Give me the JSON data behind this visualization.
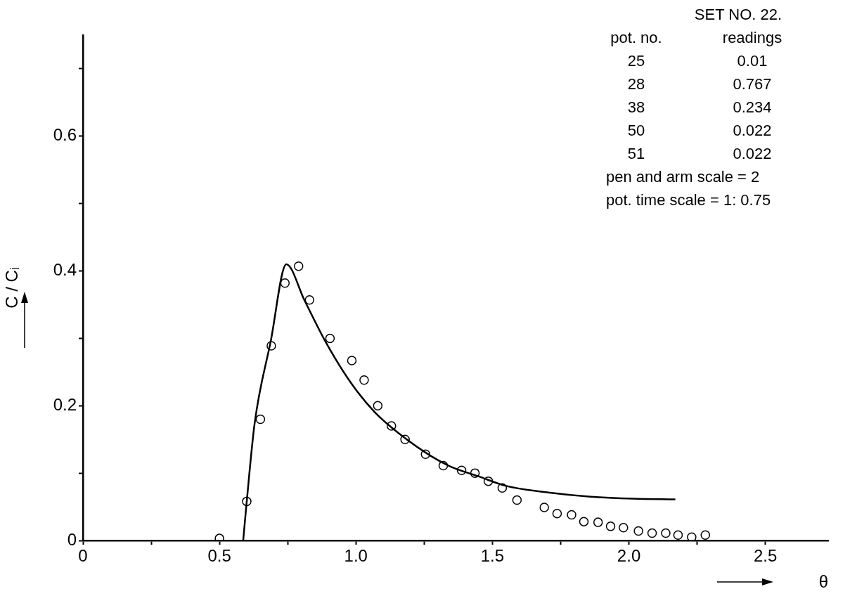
{
  "chart_data": {
    "type": "scatter",
    "xlabel": "θ",
    "ylabel": "C / Cᵢ",
    "xlim": [
      0,
      2.73
    ],
    "ylim": [
      0,
      0.75
    ],
    "xticks": [
      0,
      {
        "value": 0.25,
        "label": null
      },
      0.5,
      {
        "value": 0.75,
        "label": null
      },
      {
        "value": 1,
        "label": "1.0"
      },
      {
        "value": 1.25,
        "label": null
      },
      1.5,
      {
        "value": 1.75,
        "label": null
      },
      {
        "value": 2,
        "label": "2.0"
      },
      {
        "value": 2.25,
        "label": null
      },
      2.5
    ],
    "yticks": [
      0,
      {
        "value": 0.1,
        "label": null
      },
      0.2,
      {
        "value": 0.3,
        "label": null
      },
      0.4,
      {
        "value": 0.5,
        "label": null
      },
      0.6,
      {
        "value": 0.7,
        "label": null
      }
    ],
    "grid": false,
    "legend": false,
    "annotations": [
      "SET NO. 22.",
      "pot. no.",
      "readings",
      "25",
      "0.01",
      "28",
      "0.767",
      "38",
      "0.234",
      "50",
      "0.022",
      "51",
      "0.022",
      "pen and arm scale = 2",
      "pot. time scale = 1: 0.75"
    ],
    "series": [
      {
        "type": "line",
        "color": "#000000",
        "marker": "none",
        "line_style": "solid",
        "x": [
          0.587,
          0.6,
          0.629,
          0.688,
          0.745,
          0.812,
          0.89,
          0.985,
          1.07,
          1.157,
          1.276,
          1.345,
          1.45,
          1.55,
          1.71,
          1.86,
          2.015,
          2.17
        ],
        "values": [
          0,
          0.058,
          0.174,
          0.296,
          0.41,
          0.356,
          0.294,
          0.232,
          0.19,
          0.159,
          0.125,
          0.11,
          0.095,
          0.081,
          0.071,
          0.065,
          0.062,
          0.061
        ]
      },
      {
        "type": "scatter",
        "color": "#000000",
        "marker": "circle",
        "x": [
          0.5,
          0.6,
          0.65,
          0.69,
          0.74,
          0.79,
          0.83,
          0.905,
          0.985,
          1.03,
          1.08,
          1.13,
          1.18,
          1.255,
          1.32,
          1.387,
          1.436,
          1.485,
          1.536,
          1.59,
          1.69,
          1.737,
          1.79,
          1.835,
          1.887,
          1.933,
          1.98,
          2.035,
          2.085,
          2.135,
          2.18,
          2.23,
          2.28
        ],
        "values": [
          0.003,
          0.058,
          0.18,
          0.289,
          0.382,
          0.407,
          0.357,
          0.3,
          0.267,
          0.238,
          0.2,
          0.17,
          0.15,
          0.128,
          0.111,
          0.104,
          0.1,
          0.088,
          0.078,
          0.06,
          0.049,
          0.04,
          0.038,
          0.028,
          0.027,
          0.021,
          0.019,
          0.014,
          0.011,
          0.011,
          0.008,
          0.005,
          0.008
        ]
      }
    ]
  }
}
